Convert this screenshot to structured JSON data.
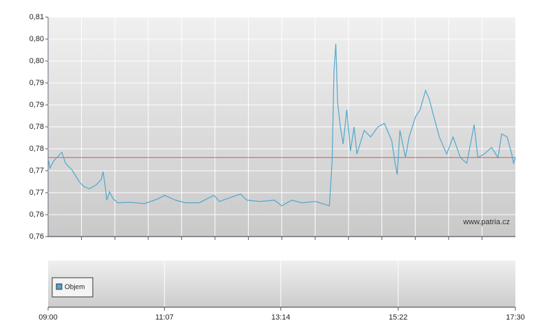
{
  "chart_data": {
    "type": "line",
    "series": [
      {
        "color": "#4ea6cf",
        "x": [
          "09:00",
          "09:02",
          "09:06",
          "09:11",
          "09:15",
          "09:19",
          "09:26",
          "09:34",
          "09:39",
          "09:45",
          "09:52",
          "09:58",
          "10:00",
          "10:02",
          "10:04",
          "10:07",
          "10:11",
          "10:16",
          "10:30",
          "10:45",
          "11:00",
          "11:07",
          "11:19",
          "11:30",
          "11:45",
          "12:01",
          "12:07",
          "12:19",
          "12:30",
          "12:37",
          "12:52",
          "13:07",
          "13:15",
          "13:26",
          "13:37",
          "13:52",
          "14:07",
          "14:10",
          "14:12",
          "14:14",
          "14:16",
          "14:19",
          "14:22",
          "14:26",
          "14:30",
          "14:34",
          "14:37",
          "14:45",
          "14:52",
          "15:00",
          "15:07",
          "15:15",
          "15:19",
          "15:21",
          "15:24",
          "15:30",
          "15:34",
          "15:41",
          "15:46",
          "15:52",
          "15:56",
          "16:01",
          "16:07",
          "16:15",
          "16:22",
          "16:30",
          "16:37",
          "16:45",
          "16:49",
          "16:56",
          "17:04",
          "17:11",
          "17:15",
          "17:21",
          "17:26",
          "17:28",
          "17:30"
        ],
        "values": [
          0.7777,
          0.7756,
          0.7772,
          0.7783,
          0.7792,
          0.7767,
          0.7752,
          0.7725,
          0.7714,
          0.7709,
          0.7717,
          0.773,
          0.7748,
          0.772,
          0.7683,
          0.7702,
          0.7686,
          0.7677,
          0.7678,
          0.7675,
          0.7686,
          0.7694,
          0.7683,
          0.7677,
          0.7677,
          0.7694,
          0.768,
          0.7689,
          0.7697,
          0.7683,
          0.768,
          0.7683,
          0.767,
          0.7683,
          0.7677,
          0.768,
          0.767,
          0.7772,
          0.7975,
          0.8039,
          0.7905,
          0.785,
          0.7811,
          0.7889,
          0.7795,
          0.785,
          0.7788,
          0.7842,
          0.7827,
          0.785,
          0.7858,
          0.7819,
          0.7764,
          0.7741,
          0.7842,
          0.778,
          0.7827,
          0.7873,
          0.7889,
          0.7933,
          0.7913,
          0.7873,
          0.7827,
          0.7788,
          0.7827,
          0.778,
          0.7767,
          0.7855,
          0.778,
          0.7788,
          0.7803,
          0.778,
          0.7834,
          0.7827,
          0.7788,
          0.7767,
          0.778
        ]
      }
    ],
    "reference_line": {
      "value": 0.778,
      "color": "#d9534f"
    },
    "xlim": [
      "09:00",
      "17:30"
    ],
    "xticks": [
      "09:00",
      "11:07",
      "13:14",
      "15:22",
      "17:30"
    ],
    "ylim": [
      0.76,
      0.81
    ],
    "yticks": [
      {
        "value": 0.81,
        "label": "0,81"
      },
      {
        "value": 0.805,
        "label": "0,80"
      },
      {
        "value": 0.8,
        "label": "0,80"
      },
      {
        "value": 0.795,
        "label": "0,79"
      },
      {
        "value": 0.79,
        "label": "0,79"
      },
      {
        "value": 0.785,
        "label": "0,78"
      },
      {
        "value": 0.78,
        "label": "0,78"
      },
      {
        "value": 0.775,
        "label": "0,77"
      },
      {
        "value": 0.77,
        "label": "0,77"
      },
      {
        "value": 0.765,
        "label": "0,76"
      },
      {
        "value": 0.76,
        "label": "0,76"
      }
    ],
    "grid": true,
    "watermark": "www.patria.cz",
    "volume_legend": {
      "label": "Objem",
      "color": "#4ea6cf"
    }
  }
}
